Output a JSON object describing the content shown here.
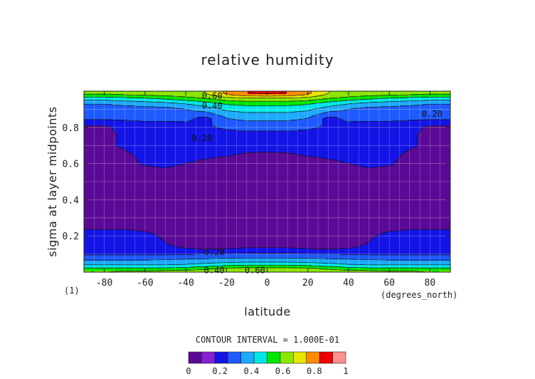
{
  "chart_data": {
    "type": "heatmap",
    "title": "relative humidity",
    "xlabel": "latitude",
    "ylabel": "sigma at layer midpoints",
    "x_units": "(degrees_north)",
    "footnote": "(1)",
    "xlim": [
      -90,
      90
    ],
    "ylim": [
      0,
      1
    ],
    "x_ticks": [
      -80,
      -60,
      -40,
      -20,
      0,
      20,
      40,
      60,
      80
    ],
    "x_tick_labels": [
      "-80",
      "-60",
      "-40",
      "-20",
      "0",
      "20",
      "40",
      "60",
      "80"
    ],
    "y_ticks": [
      0.2,
      0.4,
      0.6,
      0.8
    ],
    "y_tick_labels": [
      "0.2",
      "0.4",
      "0.6",
      "0.8"
    ],
    "grid": true,
    "contour_interval_text": "CONTOUR INTERVAL = 1.000E-01",
    "contour_levels": [
      0.1,
      0.2,
      0.3,
      0.4,
      0.5,
      0.6,
      0.7,
      0.8,
      0.9
    ],
    "contour_labels": [
      {
        "text": "0.60",
        "lat": -27,
        "sigma": 0.975
      },
      {
        "text": "0.40",
        "lat": -27,
        "sigma": 0.92
      },
      {
        "text": "0.20",
        "lat": -32,
        "sigma": 0.74
      },
      {
        "text": "0.20",
        "lat": 81,
        "sigma": 0.875
      },
      {
        "text": "0.20",
        "lat": -26,
        "sigma": 0.11
      },
      {
        "text": "0.40",
        "lat": -26,
        "sigma": 0.01
      },
      {
        "text": "0.60",
        "lat": -6,
        "sigma": 0.01
      }
    ],
    "colorbar": {
      "min": 0,
      "max": 1,
      "tick_values": [
        0,
        0.2,
        0.4,
        0.6,
        0.8,
        1
      ],
      "tick_labels": [
        "0",
        "0.2",
        "0.4",
        "0.6",
        "0.8",
        "1"
      ],
      "colors": [
        "#5a0a96",
        "#8a1fd0",
        "#1414e6",
        "#1e5aff",
        "#1eaaff",
        "#00e6e6",
        "#00e600",
        "#8ce600",
        "#e6e600",
        "#ff8c00",
        "#f00000",
        "#ff9090"
      ]
    },
    "levels_data": {
      "description_free": true,
      "lats": [
        -90,
        -80,
        -70,
        -60,
        -50,
        -40,
        -30,
        -20,
        -10,
        0,
        10,
        20,
        30,
        40,
        50,
        60,
        70,
        80,
        90
      ],
      "sigmas": [
        0.005,
        0.02,
        0.04,
        0.06,
        0.08,
        0.1,
        0.12,
        0.15,
        0.2,
        0.25,
        0.3,
        0.4,
        0.5,
        0.55,
        0.6,
        0.65,
        0.7,
        0.75,
        0.8,
        0.85,
        0.9,
        0.93,
        0.96,
        0.985
      ],
      "values": [
        [
          0.6,
          0.6,
          0.62,
          0.62,
          0.63,
          0.64,
          0.64,
          0.65,
          0.66,
          0.66,
          0.66,
          0.65,
          0.64,
          0.64,
          0.63,
          0.62,
          0.62,
          0.6,
          0.6
        ],
        [
          0.52,
          0.52,
          0.52,
          0.52,
          0.52,
          0.54,
          0.58,
          0.62,
          0.63,
          0.63,
          0.63,
          0.62,
          0.58,
          0.54,
          0.52,
          0.52,
          0.52,
          0.52,
          0.52
        ],
        [
          0.4,
          0.4,
          0.4,
          0.4,
          0.4,
          0.41,
          0.44,
          0.47,
          0.49,
          0.49,
          0.49,
          0.47,
          0.44,
          0.41,
          0.4,
          0.4,
          0.4,
          0.4,
          0.4
        ],
        [
          0.32,
          0.32,
          0.32,
          0.32,
          0.33,
          0.34,
          0.35,
          0.36,
          0.37,
          0.37,
          0.37,
          0.36,
          0.35,
          0.34,
          0.33,
          0.32,
          0.32,
          0.32,
          0.32
        ],
        [
          0.26,
          0.26,
          0.26,
          0.26,
          0.26,
          0.27,
          0.28,
          0.29,
          0.29,
          0.29,
          0.29,
          0.29,
          0.28,
          0.27,
          0.26,
          0.26,
          0.26,
          0.26,
          0.26
        ],
        [
          0.18,
          0.18,
          0.18,
          0.18,
          0.18,
          0.19,
          0.2,
          0.21,
          0.22,
          0.22,
          0.22,
          0.21,
          0.2,
          0.19,
          0.18,
          0.18,
          0.18,
          0.18,
          0.18
        ],
        [
          0.17,
          0.17,
          0.17,
          0.17,
          0.15,
          0.12,
          0.11,
          0.12,
          0.13,
          0.13,
          0.13,
          0.12,
          0.11,
          0.12,
          0.15,
          0.17,
          0.17,
          0.17,
          0.17
        ],
        [
          0.15,
          0.15,
          0.15,
          0.15,
          0.11,
          0.07,
          0.06,
          0.06,
          0.07,
          0.07,
          0.07,
          0.06,
          0.06,
          0.07,
          0.11,
          0.15,
          0.15,
          0.15,
          0.15
        ],
        [
          0.15,
          0.15,
          0.15,
          0.13,
          0.08,
          0.06,
          0.05,
          0.05,
          0.05,
          0.05,
          0.05,
          0.05,
          0.05,
          0.06,
          0.08,
          0.13,
          0.15,
          0.15,
          0.15
        ],
        [
          0.08,
          0.08,
          0.08,
          0.07,
          0.06,
          0.05,
          0.05,
          0.05,
          0.05,
          0.05,
          0.05,
          0.05,
          0.05,
          0.05,
          0.06,
          0.07,
          0.08,
          0.08,
          0.08
        ],
        [
          0.05,
          0.05,
          0.05,
          0.05,
          0.05,
          0.05,
          0.05,
          0.05,
          0.05,
          0.05,
          0.05,
          0.05,
          0.05,
          0.05,
          0.05,
          0.05,
          0.05,
          0.05,
          0.05
        ],
        [
          0.05,
          0.05,
          0.05,
          0.05,
          0.05,
          0.05,
          0.05,
          0.05,
          0.05,
          0.05,
          0.05,
          0.05,
          0.05,
          0.05,
          0.05,
          0.05,
          0.05,
          0.05,
          0.05
        ],
        [
          0.05,
          0.05,
          0.05,
          0.05,
          0.05,
          0.05,
          0.05,
          0.05,
          0.05,
          0.05,
          0.05,
          0.05,
          0.05,
          0.05,
          0.05,
          0.05,
          0.05,
          0.05,
          0.05
        ],
        [
          0.05,
          0.05,
          0.05,
          0.07,
          0.08,
          0.06,
          0.05,
          0.05,
          0.05,
          0.05,
          0.05,
          0.05,
          0.05,
          0.06,
          0.08,
          0.07,
          0.05,
          0.05,
          0.05
        ],
        [
          0.05,
          0.05,
          0.07,
          0.11,
          0.12,
          0.1,
          0.08,
          0.06,
          0.05,
          0.05,
          0.05,
          0.06,
          0.08,
          0.1,
          0.12,
          0.11,
          0.07,
          0.05,
          0.05
        ],
        [
          0.05,
          0.05,
          0.08,
          0.13,
          0.14,
          0.13,
          0.12,
          0.11,
          0.09,
          0.08,
          0.09,
          0.11,
          0.12,
          0.13,
          0.14,
          0.13,
          0.08,
          0.05,
          0.05
        ],
        [
          0.07,
          0.07,
          0.12,
          0.15,
          0.16,
          0.16,
          0.15,
          0.15,
          0.15,
          0.15,
          0.15,
          0.15,
          0.15,
          0.16,
          0.16,
          0.15,
          0.12,
          0.07,
          0.07
        ],
        [
          0.08,
          0.08,
          0.11,
          0.15,
          0.16,
          0.17,
          0.17,
          0.17,
          0.17,
          0.17,
          0.17,
          0.17,
          0.17,
          0.17,
          0.16,
          0.15,
          0.11,
          0.08,
          0.08
        ],
        [
          0.08,
          0.08,
          0.13,
          0.16,
          0.16,
          0.17,
          0.19,
          0.21,
          0.22,
          0.22,
          0.22,
          0.21,
          0.19,
          0.17,
          0.16,
          0.16,
          0.13,
          0.08,
          0.08
        ],
        [
          0.22,
          0.22,
          0.22,
          0.22,
          0.22,
          0.22,
          0.17,
          0.3,
          0.33,
          0.33,
          0.33,
          0.3,
          0.17,
          0.22,
          0.22,
          0.22,
          0.22,
          0.22,
          0.22
        ],
        [
          0.26,
          0.26,
          0.26,
          0.26,
          0.26,
          0.3,
          0.35,
          0.42,
          0.44,
          0.44,
          0.44,
          0.42,
          0.35,
          0.3,
          0.26,
          0.26,
          0.26,
          0.26,
          0.26
        ],
        [
          0.3,
          0.3,
          0.32,
          0.34,
          0.36,
          0.4,
          0.45,
          0.51,
          0.53,
          0.53,
          0.53,
          0.51,
          0.45,
          0.4,
          0.36,
          0.34,
          0.32,
          0.3,
          0.3
        ],
        [
          0.45,
          0.45,
          0.47,
          0.49,
          0.52,
          0.56,
          0.6,
          0.66,
          0.68,
          0.68,
          0.68,
          0.66,
          0.6,
          0.56,
          0.52,
          0.49,
          0.47,
          0.45,
          0.45
        ],
        [
          0.62,
          0.62,
          0.63,
          0.64,
          0.66,
          0.68,
          0.7,
          0.82,
          0.9,
          0.92,
          0.9,
          0.82,
          0.7,
          0.68,
          0.66,
          0.64,
          0.63,
          0.62,
          0.62
        ]
      ]
    }
  }
}
